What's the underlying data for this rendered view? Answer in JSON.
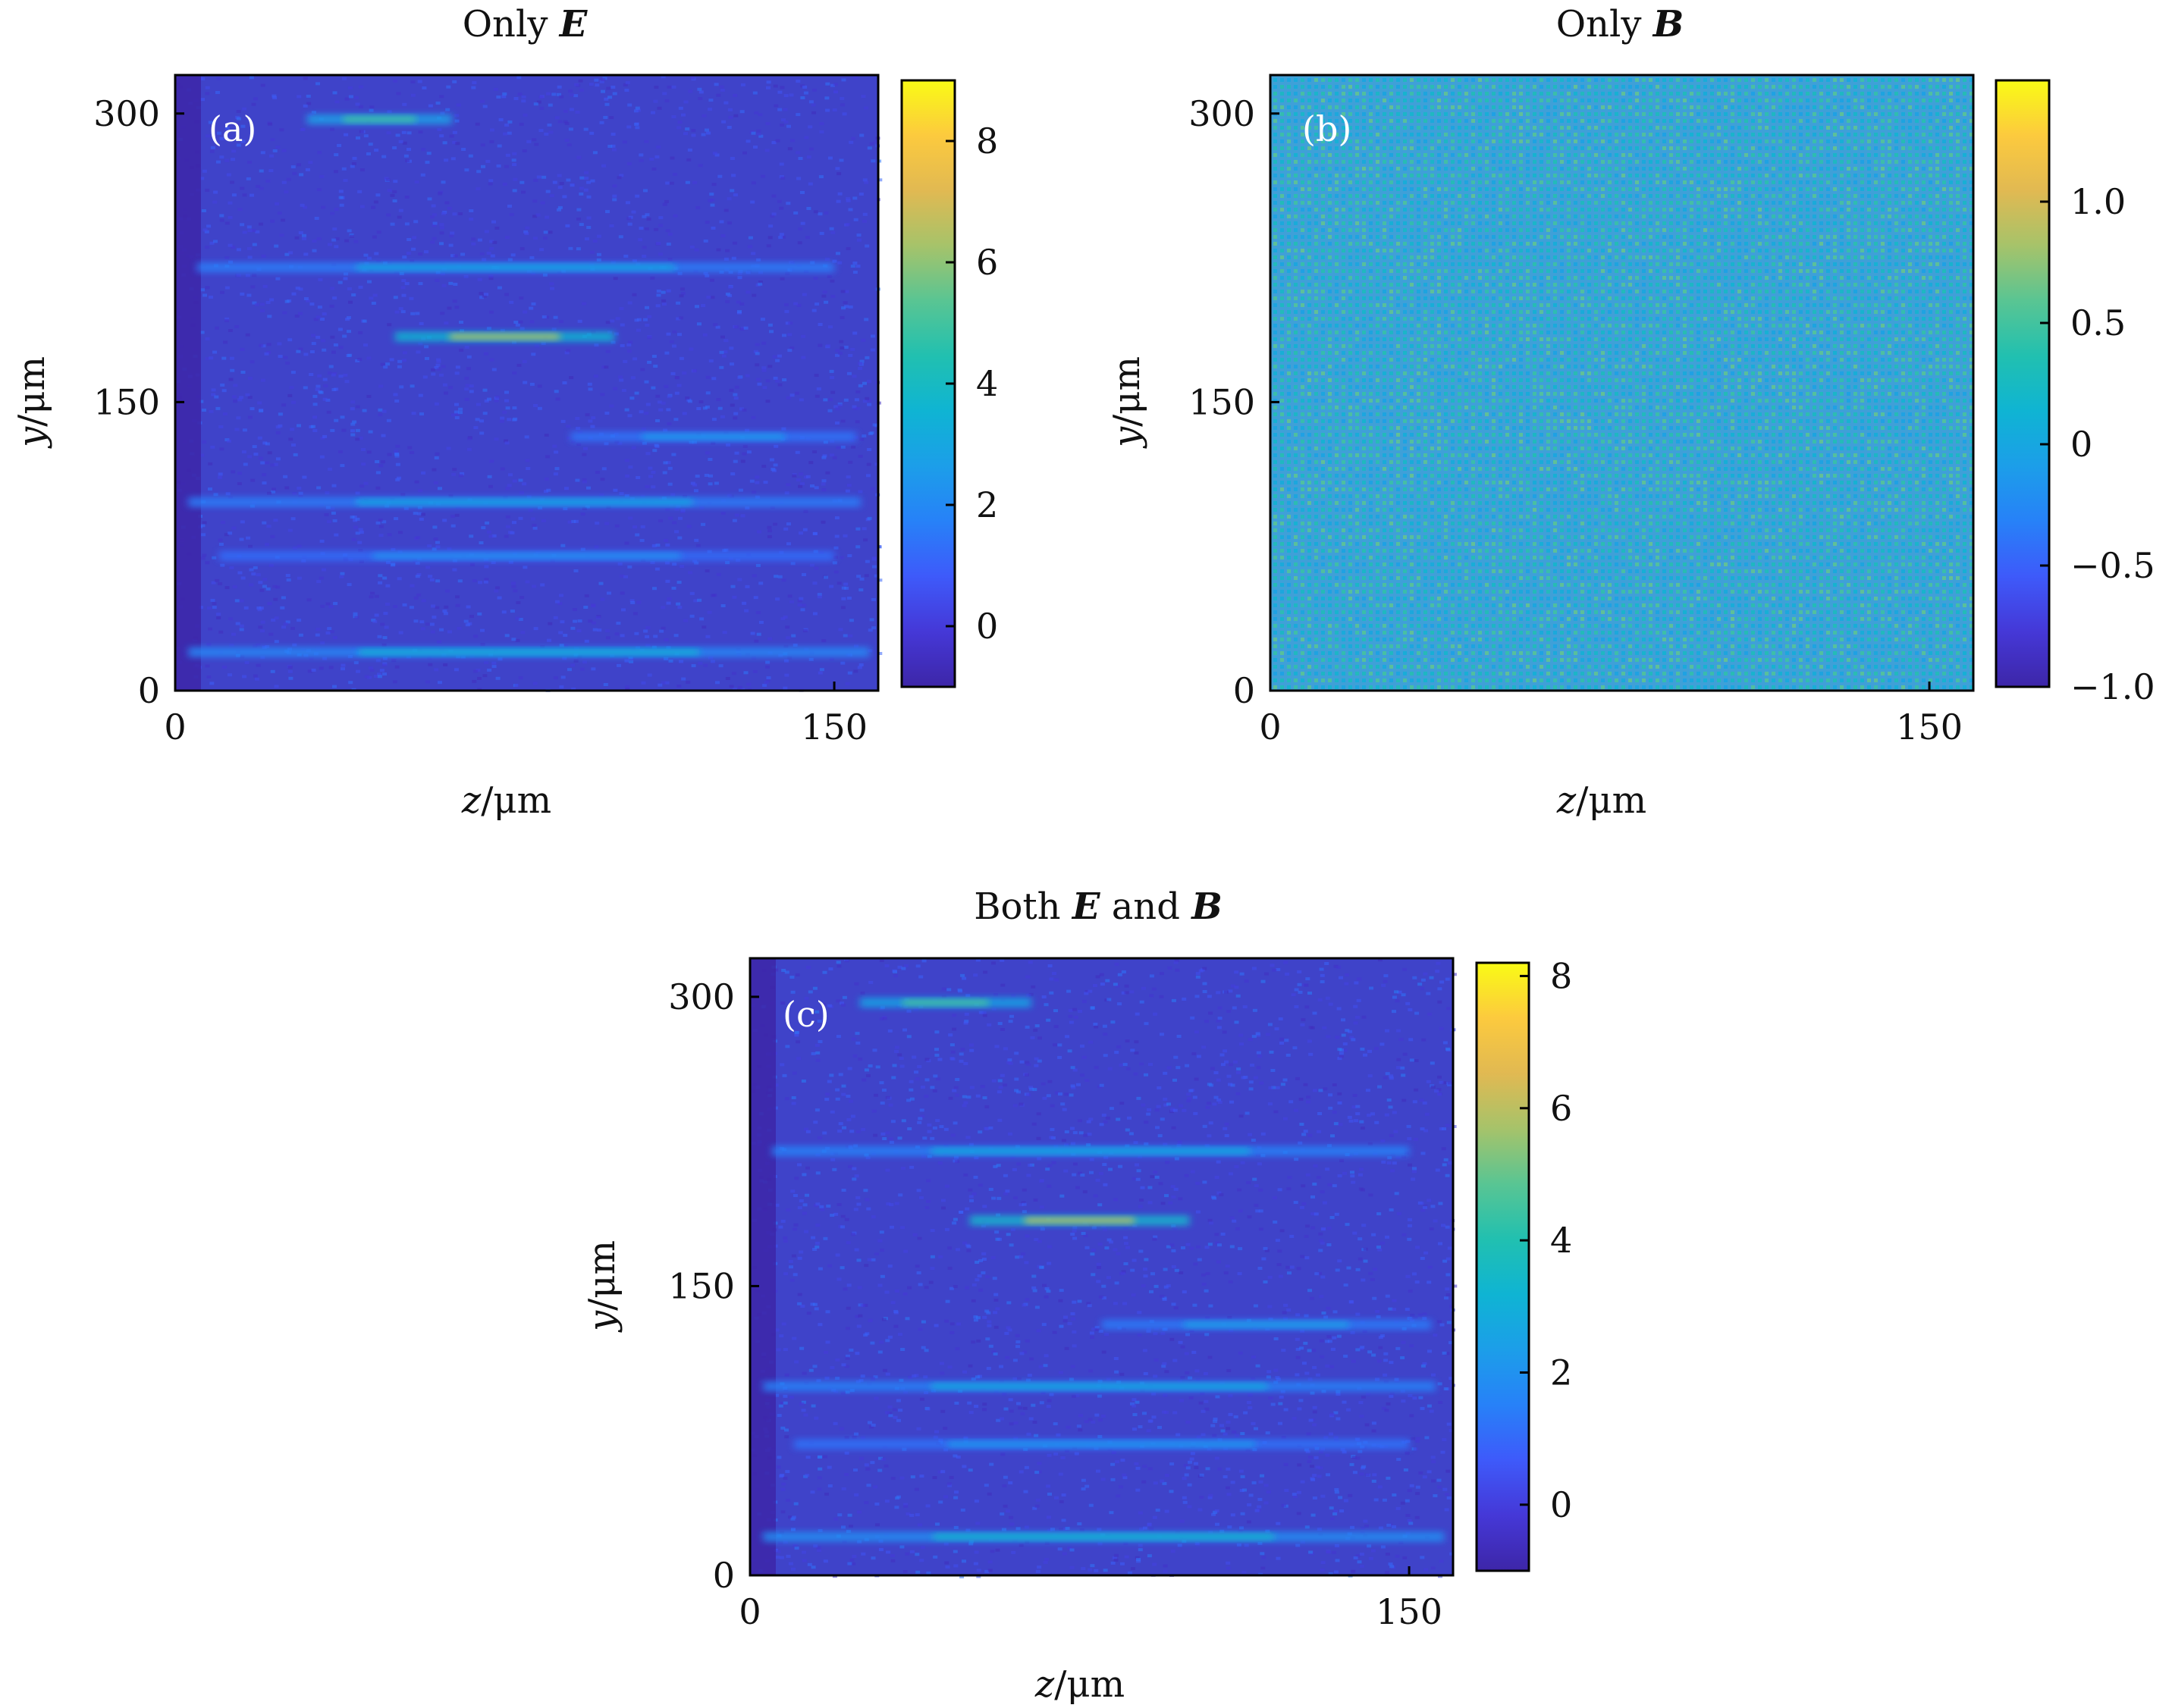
{
  "colors": {
    "cmap": [
      "#3d26a8",
      "#4538d7",
      "#3e5afa",
      "#2781f8",
      "#1c9ee9",
      "#0fb4d3",
      "#21c0b0",
      "#59c593",
      "#a6c36a",
      "#e1b952",
      "#fcca3e",
      "#f9fb15"
    ],
    "background_a": "#3f43c9",
    "background_b": "#3fa0d8",
    "background_c": "#3f43c9"
  },
  "chart_data": [
    {
      "panel": "(a)",
      "type": "heatmap",
      "title": "Only E",
      "title_plain": "Only",
      "title_symbol": "E",
      "xlabel": "z/μm",
      "xlabel_var": "z",
      "xlabel_unit": "/μm",
      "ylabel": "y/μm",
      "ylabel_var": "y",
      "ylabel_unit": "/μm",
      "xlim": [
        0,
        160
      ],
      "ylim": [
        0,
        320
      ],
      "xticks": [
        0,
        150
      ],
      "yticks": [
        0,
        150,
        300
      ],
      "xtick_labels": [
        "0",
        "150"
      ],
      "ytick_labels": [
        "0",
        "150",
        "300"
      ],
      "colorbar": {
        "range": [
          -1,
          9
        ],
        "ticks": [
          0,
          2,
          4,
          6,
          8
        ],
        "tick_labels": [
          "0",
          "2",
          "4",
          "6",
          "8"
        ]
      },
      "background_value": 0.4,
      "streaks": [
        {
          "y": 297,
          "z_start": 30,
          "z_end": 63,
          "peak": 5.0
        },
        {
          "y": 220,
          "z_start": 5,
          "z_end": 150,
          "peak": 3.0
        },
        {
          "y": 184,
          "z_start": 50,
          "z_end": 100,
          "peak": 6.5
        },
        {
          "y": 132,
          "z_start": 90,
          "z_end": 155,
          "peak": 2.6
        },
        {
          "y": 98,
          "z_start": 3,
          "z_end": 156,
          "peak": 3.0
        },
        {
          "y": 70,
          "z_start": 10,
          "z_end": 150,
          "peak": 2.3
        },
        {
          "y": 20,
          "z_start": 3,
          "z_end": 158,
          "peak": 3.5
        }
      ]
    },
    {
      "panel": "(b)",
      "type": "heatmap",
      "title": "Only B",
      "title_plain": "Only",
      "title_symbol": "B",
      "xlabel": "z/μm",
      "xlabel_var": "z",
      "xlabel_unit": "/μm",
      "ylabel": "y/μm",
      "ylabel_var": "y",
      "ylabel_unit": "/μm",
      "xlim": [
        0,
        160
      ],
      "ylim": [
        0,
        320
      ],
      "xticks": [
        0,
        150
      ],
      "yticks": [
        0,
        150,
        300
      ],
      "xtick_labels": [
        "0",
        "150"
      ],
      "ytick_labels": [
        "0",
        "150",
        "300"
      ],
      "colorbar": {
        "range": [
          -1.0,
          1.5
        ],
        "ticks": [
          -1.0,
          -0.5,
          0,
          0.5,
          1.0
        ],
        "tick_labels": [
          "−1.0",
          "−0.5",
          "0",
          "0.5",
          "1.0"
        ]
      },
      "background_value": 0.25,
      "pattern": "fine periodic dot lattice"
    },
    {
      "panel": "(c)",
      "type": "heatmap",
      "title": "Both E and B",
      "title_plain": "Both",
      "title_symbol_1": "E",
      "title_mid": "and",
      "title_symbol_2": "B",
      "xlabel": "z/μm",
      "xlabel_var": "z",
      "xlabel_unit": "/μm",
      "ylabel": "y/μm",
      "ylabel_var": "y",
      "ylabel_unit": "/μm",
      "xlim": [
        0,
        160
      ],
      "ylim": [
        0,
        320
      ],
      "xticks": [
        0,
        150
      ],
      "yticks": [
        0,
        150,
        300
      ],
      "xtick_labels": [
        "0",
        "150"
      ],
      "ytick_labels": [
        "0",
        "150",
        "300"
      ],
      "colorbar": {
        "range": [
          -1,
          8.2
        ],
        "ticks": [
          0,
          2,
          4,
          6,
          8
        ],
        "tick_labels": [
          "0",
          "2",
          "4",
          "6",
          "8"
        ]
      },
      "background_value": 0.4,
      "streaks": [
        {
          "y": 297,
          "z_start": 25,
          "z_end": 64,
          "peak": 4.6
        },
        {
          "y": 220,
          "z_start": 5,
          "z_end": 150,
          "peak": 2.8
        },
        {
          "y": 184,
          "z_start": 50,
          "z_end": 100,
          "peak": 6.0
        },
        {
          "y": 130,
          "z_start": 80,
          "z_end": 155,
          "peak": 2.5
        },
        {
          "y": 98,
          "z_start": 3,
          "z_end": 156,
          "peak": 2.8
        },
        {
          "y": 68,
          "z_start": 10,
          "z_end": 150,
          "peak": 2.2
        },
        {
          "y": 20,
          "z_start": 3,
          "z_end": 158,
          "peak": 3.4
        }
      ]
    }
  ]
}
